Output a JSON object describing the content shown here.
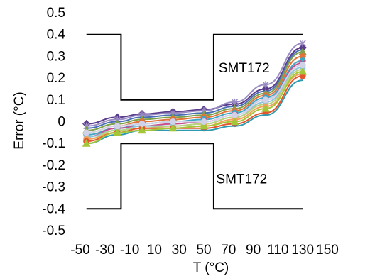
{
  "chart_data": {
    "type": "line",
    "xlabel": "T (°C)",
    "ylabel": "Error (°C)",
    "xlim": [
      -50,
      150
    ],
    "ylim": [
      -0.5,
      0.5
    ],
    "xticks": [
      "-50",
      "-30",
      "-10",
      "10",
      "30",
      "50",
      "70",
      "90",
      "110",
      "130",
      "150"
    ],
    "yticks": [
      "-0.5",
      "-0.4",
      "-0.3",
      "-0.2",
      "-0.1",
      "0",
      "0.1",
      "0.2",
      "0.3",
      "0.4",
      "0.5"
    ],
    "grid": false,
    "x": [
      -45,
      -20,
      0,
      25,
      50,
      75,
      100,
      130
    ],
    "series": [
      {
        "color": "#5b3b8c",
        "marker": "diamond",
        "values": [
          -0.01,
          0.02,
          0.035,
          0.045,
          0.055,
          0.08,
          0.15,
          0.34
        ]
      },
      {
        "color": "#9a8cc2",
        "marker": "star",
        "values": [
          -0.02,
          0.01,
          0.03,
          0.04,
          0.05,
          0.09,
          0.17,
          0.36
        ]
      },
      {
        "color": "#4a6fb5",
        "marker": "none",
        "values": [
          -0.03,
          0.0,
          0.02,
          0.03,
          0.04,
          0.07,
          0.14,
          0.33
        ]
      },
      {
        "color": "#7da04b",
        "marker": "triangle",
        "values": [
          -0.04,
          -0.01,
          0.01,
          0.02,
          0.03,
          0.06,
          0.13,
          0.32
        ]
      },
      {
        "color": "#e0723a",
        "marker": "circle",
        "values": [
          -0.05,
          -0.02,
          0.0,
          0.01,
          0.02,
          0.05,
          0.12,
          0.3
        ]
      },
      {
        "color": "#3fa6c4",
        "marker": "circle",
        "values": [
          -0.06,
          -0.03,
          -0.01,
          0.0,
          0.01,
          0.04,
          0.11,
          0.28
        ]
      },
      {
        "color": "#c94f8a",
        "marker": "x",
        "values": [
          -0.07,
          -0.03,
          -0.02,
          -0.01,
          0.0,
          0.03,
          0.1,
          0.27
        ]
      },
      {
        "color": "#8fc3d9",
        "marker": "square",
        "values": [
          -0.07,
          -0.04,
          -0.02,
          -0.02,
          -0.01,
          0.02,
          0.09,
          0.25
        ]
      },
      {
        "color": "#b8d27a",
        "marker": "none",
        "values": [
          -0.08,
          -0.04,
          -0.03,
          -0.02,
          -0.01,
          0.02,
          0.08,
          0.24
        ]
      },
      {
        "color": "#f2a25c",
        "marker": "circle",
        "values": [
          -0.08,
          -0.05,
          -0.03,
          -0.03,
          -0.02,
          0.01,
          0.07,
          0.22
        ]
      },
      {
        "color": "#e4572e",
        "marker": "circle",
        "values": [
          -0.09,
          -0.05,
          -0.03,
          -0.03,
          -0.03,
          -0.01,
          0.04,
          0.21
        ]
      },
      {
        "color": "#2e9ab0",
        "marker": "none",
        "values": [
          -0.1,
          -0.06,
          -0.04,
          -0.04,
          -0.04,
          -0.02,
          0.03,
          0.19
        ]
      },
      {
        "color": "#a4c639",
        "marker": "triangle",
        "values": [
          -0.1,
          -0.05,
          -0.04,
          -0.03,
          -0.02,
          0.0,
          0.06,
          0.23
        ]
      },
      {
        "color": "#d1d1e8",
        "marker": "circle",
        "values": [
          -0.05,
          -0.02,
          -0.01,
          0.0,
          0.0,
          0.03,
          0.1,
          0.26
        ]
      }
    ],
    "limits": {
      "upper": {
        "x": [
          -45,
          -17,
          -17,
          58,
          58,
          130
        ],
        "y": [
          0.4,
          0.4,
          0.1,
          0.1,
          0.4,
          0.4
        ]
      },
      "lower": {
        "x": [
          -45,
          -17,
          -17,
          58,
          58,
          130
        ],
        "y": [
          -0.4,
          -0.4,
          -0.1,
          -0.1,
          -0.4,
          -0.4
        ]
      }
    },
    "annotations": [
      {
        "text": "SMT172",
        "x": 62,
        "y": 0.25
      },
      {
        "text": "SMT172",
        "x": 60,
        "y": -0.26
      }
    ]
  }
}
